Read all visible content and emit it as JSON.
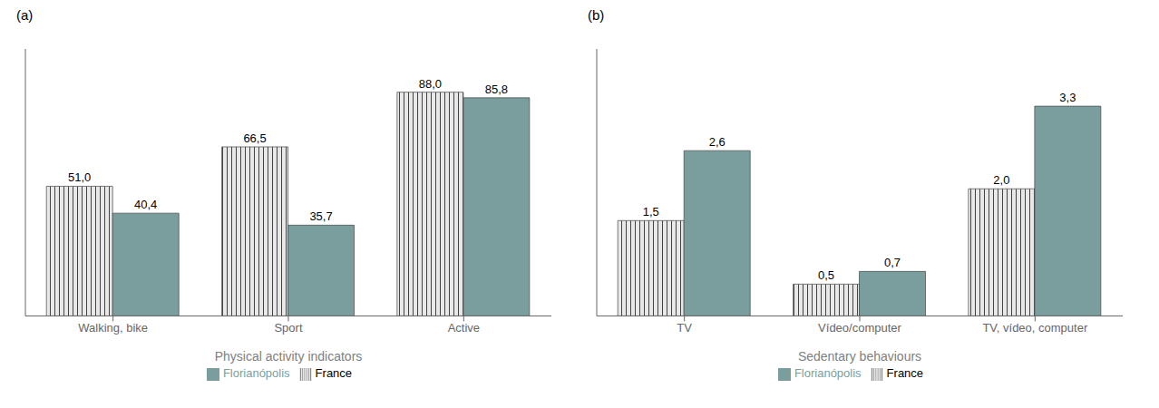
{
  "chart_data": [
    {
      "type": "bar",
      "title": "(a)",
      "xlabel": "Physical activity indicators",
      "categories": [
        "Walking, bike",
        "Sport",
        "Active"
      ],
      "series": [
        {
          "name": "France",
          "color": "#e8e8e8",
          "values": [
            51.0,
            66.5,
            88.0
          ],
          "value_labels": [
            "51,0",
            "66,5",
            "88,0"
          ]
        },
        {
          "name": "Florianópolis",
          "color": "#7a9e9e",
          "values": [
            40.4,
            35.7,
            85.8
          ],
          "value_labels": [
            "40,4",
            "35,7",
            "85,8"
          ]
        }
      ],
      "ylim": [
        0,
        105
      ],
      "data_labels": true,
      "tick_labels": "x",
      "legend": "bottom",
      "grid": false
    },
    {
      "type": "bar",
      "title": "(b)",
      "xlabel": "Sedentary behaviours",
      "categories": [
        "TV",
        "Vídeo/computer",
        "TV, vídeo, computer"
      ],
      "series": [
        {
          "name": "France",
          "color": "#e8e8e8",
          "values": [
            1.5,
            0.5,
            2.0
          ],
          "value_labels": [
            "1,5",
            "0,5",
            "2,0"
          ]
        },
        {
          "name": "Florianópolis",
          "color": "#7a9e9e",
          "values": [
            2.6,
            0.7,
            3.3
          ],
          "value_labels": [
            "2,6",
            "0,7",
            "3,3"
          ]
        }
      ],
      "ylim": [
        0,
        4.2
      ],
      "data_labels": true,
      "tick_labels": "x",
      "legend": "bottom",
      "grid": false
    }
  ]
}
